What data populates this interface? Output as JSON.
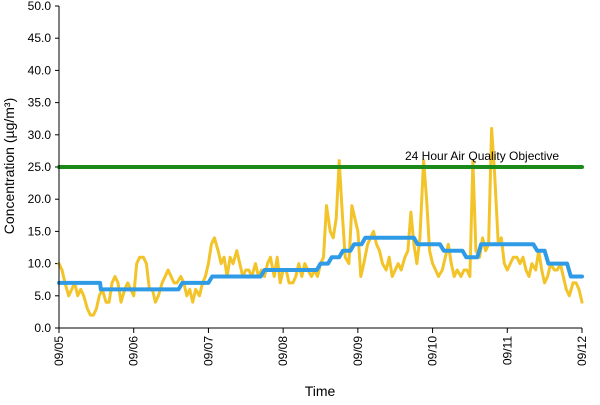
{
  "chart_data": {
    "type": "line",
    "title": "",
    "xlabel": "Time",
    "ylabel": "Concentration (µg/m³)",
    "ylim": [
      0,
      50
    ],
    "yticks": [
      "0.0",
      "5.0",
      "10.0",
      "15.0",
      "20.0",
      "25.0",
      "30.0",
      "35.0",
      "40.0",
      "45.0",
      "50.0"
    ],
    "xticks": [
      "09/05",
      "09/06",
      "09/07",
      "09/08",
      "09/09",
      "09/10",
      "09/11",
      "09/12"
    ],
    "xlim": [
      0,
      7
    ],
    "grid": false,
    "legend": "none",
    "annotations": [
      {
        "text": "24 Hour Air Quality Objective",
        "y": 25
      }
    ],
    "colors": {
      "hourly": "#f2c42a",
      "rolling": "#2f9be6",
      "objective": "#1a8a1a",
      "axis": "#000000"
    },
    "series": [
      {
        "x": [
          0.0,
          0.04,
          0.08,
          0.13,
          0.17,
          0.21,
          0.25,
          0.29,
          0.33,
          0.38,
          0.42,
          0.46,
          0.5,
          0.54,
          0.58,
          0.63,
          0.67,
          0.71,
          0.75,
          0.79,
          0.83,
          0.88,
          0.92,
          0.96,
          1.0,
          1.04,
          1.08,
          1.13,
          1.17,
          1.21,
          1.25,
          1.29,
          1.33,
          1.38,
          1.42,
          1.46,
          1.5,
          1.54,
          1.58,
          1.63,
          1.67,
          1.71,
          1.75,
          1.79,
          1.83,
          1.88,
          1.92,
          1.96,
          2.0,
          2.04,
          2.08,
          2.13,
          2.17,
          2.21,
          2.25,
          2.29,
          2.33,
          2.38,
          2.42,
          2.46,
          2.5,
          2.54,
          2.58,
          2.63,
          2.67,
          2.71,
          2.75,
          2.79,
          2.83,
          2.88,
          2.92,
          2.96,
          3.0,
          3.04,
          3.08,
          3.13,
          3.17,
          3.21,
          3.25,
          3.29,
          3.33,
          3.38,
          3.42,
          3.46,
          3.5,
          3.54,
          3.58,
          3.63,
          3.67,
          3.71,
          3.75,
          3.79,
          3.83,
          3.88,
          3.92,
          3.96,
          4.0,
          4.04,
          4.08,
          4.13,
          4.17,
          4.21,
          4.25,
          4.29,
          4.33,
          4.38,
          4.42,
          4.46,
          4.5,
          4.54,
          4.58,
          4.63,
          4.67,
          4.71,
          4.75,
          4.79,
          4.83,
          4.88,
          4.92,
          4.96,
          5.0,
          5.04,
          5.08,
          5.13,
          5.17,
          5.21,
          5.25,
          5.29,
          5.33,
          5.38,
          5.42,
          5.46,
          5.5,
          5.54,
          5.58,
          5.63,
          5.67,
          5.71,
          5.75,
          5.79,
          5.83,
          5.88,
          5.92,
          5.96,
          6.0,
          6.04,
          6.08,
          6.13,
          6.17,
          6.21,
          6.25,
          6.29,
          6.33,
          6.38,
          6.42,
          6.46,
          6.5,
          6.54,
          6.58,
          6.63,
          6.67,
          6.71,
          6.75,
          6.79,
          6.83,
          6.88,
          6.92,
          6.96,
          7.0
        ],
        "values": [
          10,
          9,
          7,
          5,
          6,
          7,
          5,
          6,
          5,
          3,
          2,
          2,
          3,
          5,
          6,
          4,
          4,
          7,
          8,
          7,
          4,
          6,
          7,
          6,
          5,
          10,
          11,
          11,
          10,
          6,
          6,
          4,
          5,
          7,
          8,
          9,
          8,
          7,
          7,
          8,
          7,
          5,
          6,
          4,
          6,
          5,
          7,
          8,
          10,
          13,
          14,
          12,
          10,
          11,
          8,
          11,
          10,
          12,
          10,
          8,
          9,
          9,
          8,
          10,
          8,
          9,
          8,
          10,
          11,
          8,
          11,
          7,
          9,
          9,
          7,
          7,
          8,
          10,
          8,
          10,
          9,
          8,
          9,
          8,
          10,
          11,
          19,
          15,
          14,
          17,
          26,
          18,
          11,
          10,
          19,
          17,
          15,
          8,
          10,
          13,
          14,
          15,
          13,
          12,
          10,
          9,
          11,
          8,
          9,
          10,
          9,
          11,
          12,
          18,
          13,
          10,
          14,
          26,
          20,
          12,
          10,
          9,
          8,
          9,
          11,
          13,
          10,
          8,
          9,
          8,
          9,
          9,
          8,
          26,
          12,
          11,
          14,
          12,
          13,
          31,
          24,
          13,
          14,
          10,
          9,
          10,
          11,
          11,
          10,
          11,
          9,
          8,
          10,
          9,
          12,
          9,
          7,
          8,
          10,
          9,
          9,
          10,
          8,
          6,
          5,
          7,
          7,
          6,
          4
        ]
      },
      {
        "x": [
          0.0,
          0.55,
          0.56,
          1.2,
          1.3,
          1.6,
          1.65,
          1.85,
          1.9,
          2.0,
          2.05,
          2.7,
          2.75,
          2.95,
          3.0,
          3.25,
          3.3,
          3.45,
          3.5,
          3.6,
          3.65,
          3.75,
          3.8,
          3.9,
          3.95,
          4.05,
          4.1,
          4.75,
          4.8,
          5.1,
          5.15,
          5.4,
          5.45,
          5.6,
          5.65,
          6.35,
          6.4,
          6.5,
          6.55,
          6.8,
          6.85,
          7.0
        ],
        "values": [
          7,
          7,
          6,
          6,
          6,
          6,
          7,
          7,
          7,
          7,
          8,
          8,
          9,
          9,
          9,
          9,
          9,
          9,
          10,
          10,
          11,
          11,
          12,
          12,
          13,
          13,
          14,
          14,
          13,
          13,
          12,
          12,
          11,
          11,
          13,
          13,
          12,
          12,
          10,
          10,
          8,
          8
        ]
      },
      {
        "x": [
          0,
          7
        ],
        "values": [
          25,
          25
        ]
      }
    ]
  }
}
